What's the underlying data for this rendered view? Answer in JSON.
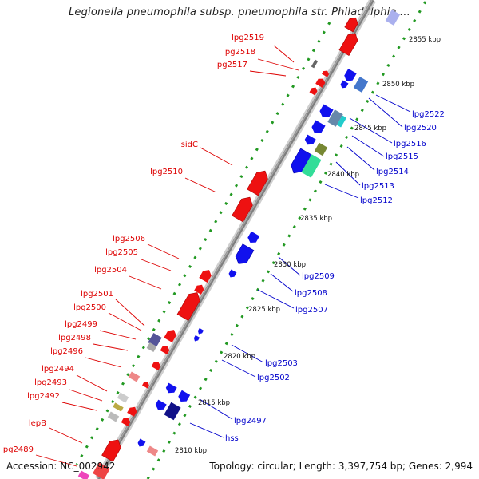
{
  "title": "Legionella pneumophila subsp. pneumophila str. Philadelphia ...",
  "footer": {
    "accession": "Accession: NC_002942",
    "stats": "Topology: circular; Length: 3,397,754 bp; Genes: 2,994"
  },
  "colors": {
    "forward_gene": "#ee1111",
    "reverse_gene": "#1111ee",
    "forward_label": "#dd0000",
    "reverse_label": "#0000cc",
    "backbone": "#888888",
    "dotted_track": "#229922"
  },
  "map": {
    "kbp_range": [
      2807,
      2858
    ],
    "ticks": [
      "2810 kbp",
      "2815 kbp",
      "2820 kbp",
      "2825 kbp",
      "2830 kbp",
      "2835 kbp",
      "2840 kbp",
      "2845 kbp",
      "2850 kbp",
      "2855 kbp"
    ],
    "forward_labels": [
      "lpg2519",
      "lpg2518",
      "lpg2517",
      "sidC",
      "lpg2510",
      "lpg2506",
      "lpg2505",
      "lpg2504",
      "lpg2501",
      "lpg2500",
      "lpg2499",
      "lpg2498",
      "lpg2496",
      "lpg2494",
      "lpg2493",
      "lpg2492",
      "lepB",
      "lpg2489"
    ],
    "reverse_labels": [
      "lpg2522",
      "lpg2520",
      "lpg2516",
      "lpg2515",
      "lpg2514",
      "lpg2513",
      "lpg2512",
      "lpg2509",
      "lpg2508",
      "lpg2507",
      "lpg2503",
      "lpg2502",
      "lpg2497",
      "hss"
    ]
  }
}
